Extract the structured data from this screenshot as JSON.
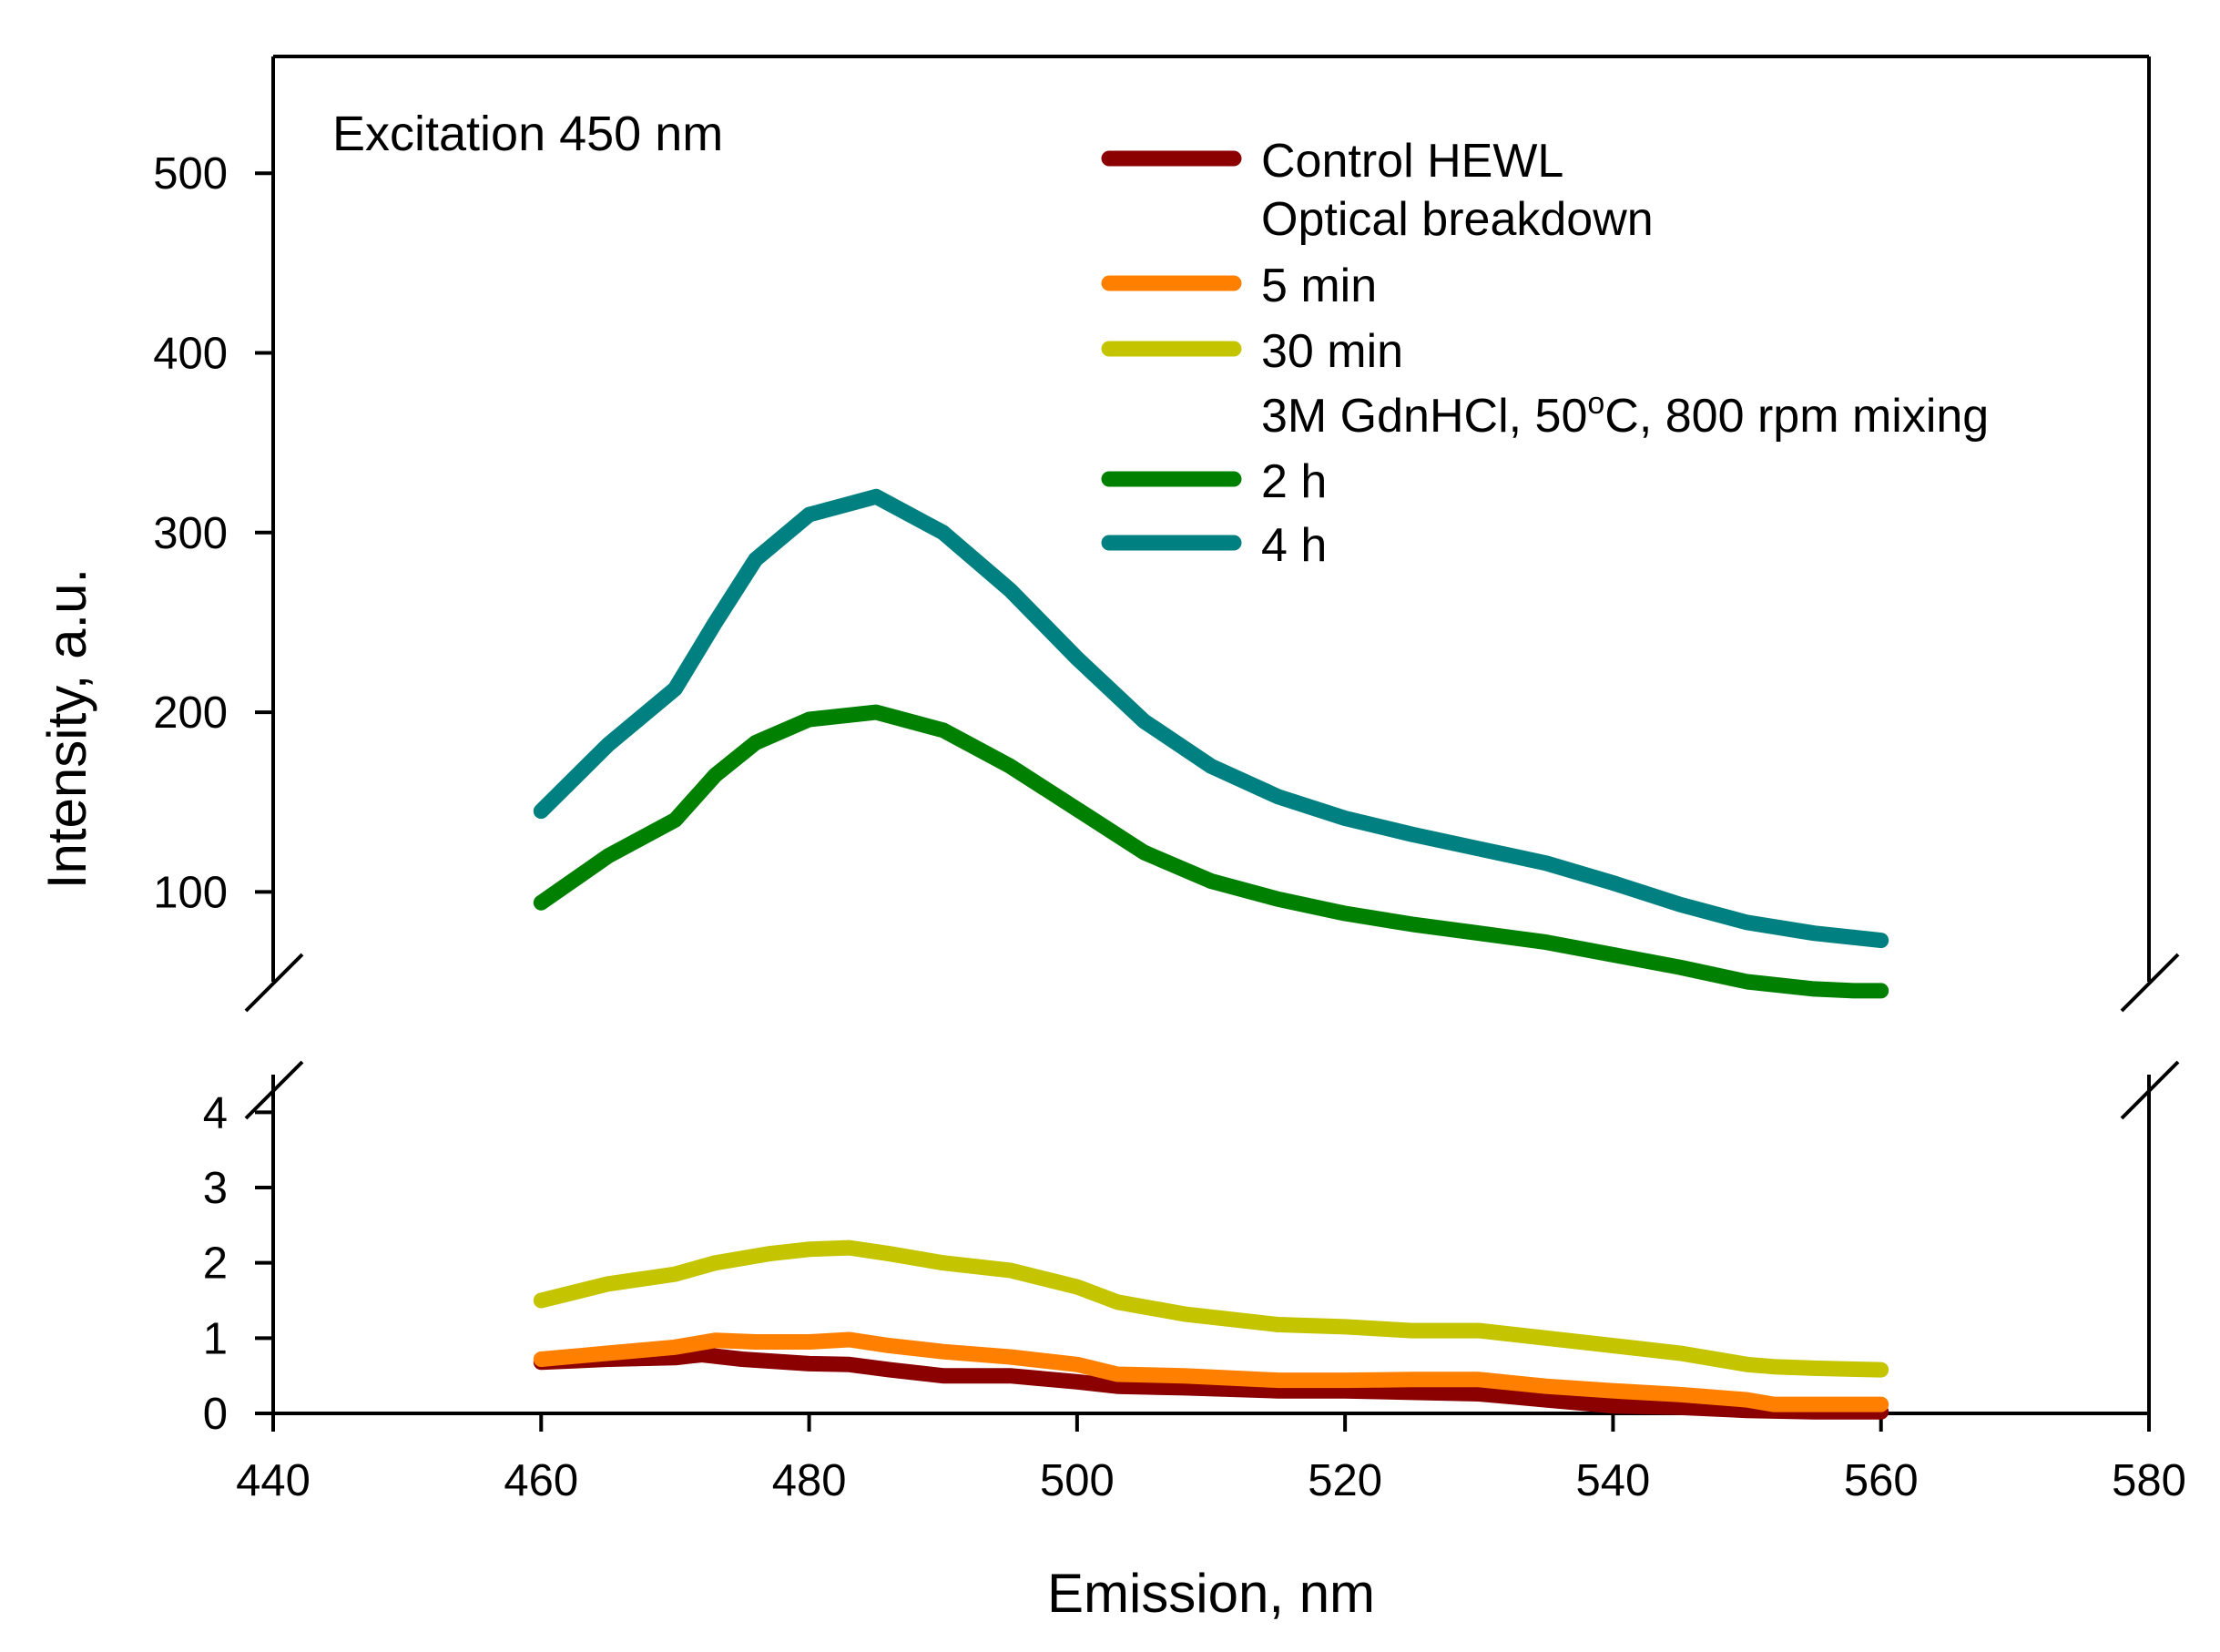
{
  "chart_data": {
    "type": "line",
    "axis_break": true,
    "xlabel": "Emission, nm",
    "ylabel": "Intensity, a.u.",
    "annotation": "Excitation 450 nm",
    "xlim": [
      440,
      580
    ],
    "x_ticks": [
      440,
      460,
      480,
      500,
      520,
      540,
      560,
      580
    ],
    "y_upper": {
      "range": [
        50,
        565
      ],
      "ticks": [
        100,
        200,
        300,
        400,
        500
      ]
    },
    "y_lower": {
      "range": [
        0,
        4.5
      ],
      "ticks": [
        0,
        1,
        2,
        3,
        4
      ]
    },
    "legend": [
      {
        "label": "Control HEWL",
        "swatch": true
      },
      {
        "label": "Optical breakdown",
        "swatch": false
      },
      {
        "label": "5 min",
        "swatch": true
      },
      {
        "label": "30 min",
        "swatch": true
      },
      {
        "label": "3M GdnHCl, 50",
        "sup": "o",
        "tail": "C, 800 rpm mixing",
        "swatch": false
      },
      {
        "label": "2 h",
        "swatch": true
      },
      {
        "label": "4 h",
        "swatch": true
      }
    ],
    "series": [
      {
        "name": "Control HEWL",
        "color": "#8b0000",
        "panel": "lower",
        "x": [
          460,
          465,
          470,
          472,
          475,
          480,
          483,
          486,
          490,
          495,
          500,
          503,
          508,
          515,
          520,
          525,
          530,
          535,
          540,
          545,
          550,
          555,
          560
        ],
        "y": [
          0.68,
          0.72,
          0.74,
          0.78,
          0.72,
          0.66,
          0.65,
          0.58,
          0.5,
          0.5,
          0.42,
          0.36,
          0.34,
          0.3,
          0.3,
          0.28,
          0.26,
          0.18,
          0.1,
          0.08,
          0.04,
          0.02,
          0.02
        ]
      },
      {
        "name": "5 min",
        "color": "#ff8000",
        "panel": "lower",
        "x": [
          460,
          465,
          470,
          473,
          476,
          480,
          483,
          486,
          490,
          495,
          500,
          503,
          508,
          515,
          520,
          525,
          530,
          535,
          540,
          545,
          550,
          552,
          555,
          560
        ],
        "y": [
          0.72,
          0.8,
          0.88,
          0.97,
          0.95,
          0.95,
          0.98,
          0.9,
          0.82,
          0.75,
          0.65,
          0.52,
          0.5,
          0.44,
          0.44,
          0.45,
          0.45,
          0.36,
          0.3,
          0.25,
          0.18,
          0.12,
          0.12,
          0.12
        ]
      },
      {
        "name": "30 min",
        "color": "#c4c400",
        "panel": "lower",
        "x": [
          460,
          465,
          470,
          473,
          477,
          480,
          483,
          486,
          490,
          495,
          500,
          503,
          508,
          515,
          520,
          525,
          530,
          535,
          540,
          545,
          550,
          552,
          555,
          560
        ],
        "y": [
          1.5,
          1.72,
          1.85,
          2.0,
          2.12,
          2.18,
          2.2,
          2.12,
          2.0,
          1.9,
          1.68,
          1.48,
          1.32,
          1.18,
          1.15,
          1.1,
          1.1,
          1.0,
          0.9,
          0.8,
          0.65,
          0.62,
          0.6,
          0.58
        ]
      },
      {
        "name": "2 h",
        "color": "#008000",
        "panel": "upper",
        "x": [
          460,
          465,
          470,
          473,
          476,
          480,
          485,
          490,
          495,
          500,
          505,
          510,
          515,
          520,
          525,
          530,
          535,
          540,
          545,
          550,
          555,
          558,
          560
        ],
        "y": [
          94,
          120,
          140,
          165,
          183,
          196,
          200,
          190,
          170,
          146,
          122,
          106,
          96,
          88,
          82,
          77,
          72,
          65,
          58,
          50,
          46,
          45,
          45
        ]
      },
      {
        "name": "4 h",
        "color": "#008080",
        "panel": "upper",
        "x": [
          460,
          465,
          470,
          473,
          476,
          480,
          485,
          490,
          495,
          500,
          505,
          510,
          515,
          520,
          525,
          530,
          535,
          540,
          545,
          550,
          555,
          560
        ],
        "y": [
          145,
          182,
          213,
          250,
          285,
          310,
          320,
          300,
          268,
          230,
          195,
          170,
          153,
          141,
          132,
          124,
          116,
          105,
          93,
          83,
          77,
          73
        ]
      }
    ]
  },
  "colors": {
    "axis": "#000000",
    "background": "#ffffff"
  }
}
